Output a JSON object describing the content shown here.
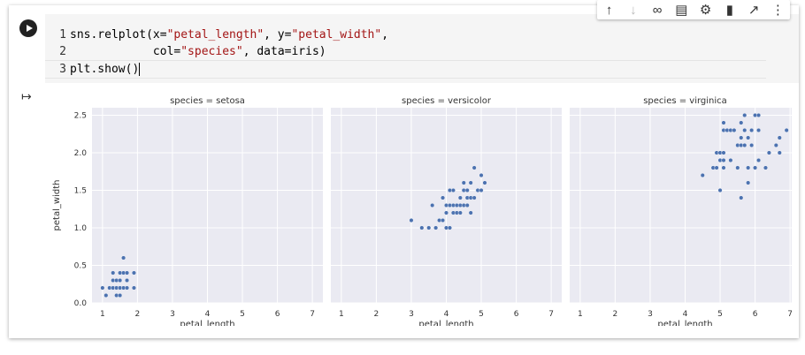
{
  "toolbar": {
    "icons": [
      "arrow-up-icon",
      "arrow-down-icon",
      "link-icon",
      "comment-icon",
      "gear-icon",
      "trash-icon",
      "expand-icon",
      "more-icon"
    ]
  },
  "code": {
    "line_numbers": [
      "1",
      "2",
      "3"
    ],
    "line1_a": "sns.relplot(x=",
    "line1_s1": "\"petal_length\"",
    "line1_b": ", y=",
    "line1_s2": "\"petal_width\"",
    "line1_c": ",",
    "line2_a": "            col=",
    "line2_s1": "\"species\"",
    "line2_b": ", data=iris)",
    "line3": "plt.show()"
  },
  "chart_data": {
    "type": "scatter",
    "xlabel": "petal_length",
    "ylabel": "petal_width",
    "xlim": [
      0.7,
      7.3
    ],
    "ylim": [
      0,
      2.6
    ],
    "xticks": [
      1,
      2,
      3,
      4,
      5,
      6,
      7
    ],
    "yticks": [
      "0.0",
      "0.5",
      "1.0",
      "1.5",
      "2.0",
      "2.5"
    ],
    "color": "#4c72b0",
    "panels": [
      {
        "title": "species = setosa",
        "x": [
          1.0,
          1.1,
          1.2,
          1.2,
          1.3,
          1.3,
          1.3,
          1.4,
          1.4,
          1.4,
          1.4,
          1.5,
          1.5,
          1.5,
          1.5,
          1.5,
          1.6,
          1.6,
          1.6,
          1.6,
          1.7,
          1.7,
          1.7,
          1.9,
          1.9
        ],
        "y": [
          0.2,
          0.1,
          0.2,
          0.2,
          0.2,
          0.3,
          0.4,
          0.1,
          0.2,
          0.3,
          0.2,
          0.1,
          0.2,
          0.3,
          0.4,
          0.2,
          0.2,
          0.4,
          0.6,
          0.2,
          0.2,
          0.3,
          0.4,
          0.2,
          0.4
        ]
      },
      {
        "title": "species = versicolor",
        "x": [
          3.0,
          3.3,
          3.5,
          3.6,
          3.7,
          3.8,
          3.9,
          3.9,
          4.0,
          4.0,
          4.0,
          4.1,
          4.1,
          4.1,
          4.2,
          4.2,
          4.2,
          4.3,
          4.3,
          4.4,
          4.4,
          4.4,
          4.5,
          4.5,
          4.5,
          4.6,
          4.6,
          4.6,
          4.7,
          4.7,
          4.7,
          4.8,
          4.8,
          4.9,
          4.9,
          5.0,
          5.0,
          5.1
        ],
        "y": [
          1.1,
          1.0,
          1.0,
          1.3,
          1.0,
          1.1,
          1.1,
          1.4,
          1.0,
          1.2,
          1.3,
          1.0,
          1.3,
          1.5,
          1.2,
          1.3,
          1.5,
          1.3,
          1.2,
          1.3,
          1.4,
          1.2,
          1.5,
          1.3,
          1.6,
          1.3,
          1.4,
          1.5,
          1.2,
          1.4,
          1.6,
          1.4,
          1.8,
          1.5,
          1.5,
          1.7,
          1.5,
          1.6
        ]
      },
      {
        "title": "species = virginica",
        "x": [
          4.5,
          4.8,
          4.8,
          4.9,
          4.9,
          5.0,
          5.0,
          5.0,
          5.0,
          5.1,
          5.1,
          5.1,
          5.1,
          5.1,
          5.2,
          5.3,
          5.3,
          5.4,
          5.5,
          5.5,
          5.5,
          5.6,
          5.6,
          5.6,
          5.6,
          5.7,
          5.7,
          5.7,
          5.8,
          5.8,
          5.8,
          5.9,
          5.9,
          6.0,
          6.0,
          6.1,
          6.1,
          6.1,
          6.3,
          6.4,
          6.6,
          6.7,
          6.7,
          6.9
        ],
        "y": [
          1.7,
          1.8,
          1.8,
          1.8,
          2.0,
          1.5,
          2.0,
          1.9,
          1.5,
          1.8,
          2.0,
          2.3,
          2.4,
          1.9,
          2.3,
          1.9,
          2.3,
          2.3,
          2.1,
          1.8,
          1.8,
          1.4,
          2.1,
          2.2,
          2.4,
          2.3,
          2.5,
          2.1,
          1.6,
          2.2,
          1.8,
          2.1,
          2.3,
          1.8,
          2.5,
          1.9,
          2.3,
          2.5,
          1.8,
          2.0,
          2.1,
          2.2,
          2.0,
          2.3
        ]
      }
    ]
  }
}
